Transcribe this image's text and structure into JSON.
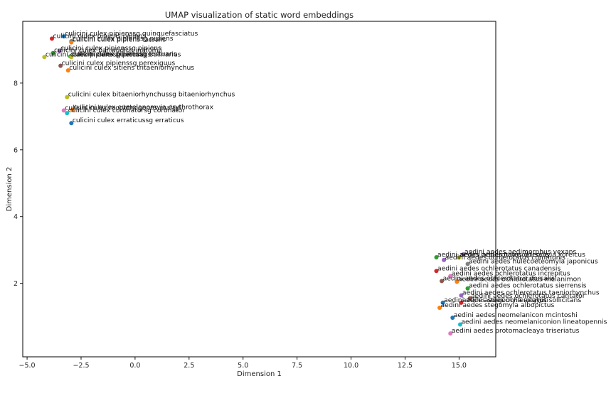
{
  "chart_data": {
    "type": "scatter",
    "title": "UMAP visualization of static word embeddings",
    "xlabel": "Dimension 1",
    "ylabel": "Dimension 2",
    "xlim": [
      -5.2,
      16.7
    ],
    "ylim": [
      -0.2,
      9.85
    ],
    "xticks": [
      -5.0,
      -2.5,
      0.0,
      2.5,
      5.0,
      7.5,
      10.0,
      12.5,
      15.0
    ],
    "xtick_labels": [
      "−5.0",
      "−2.5",
      "0.0",
      "2.5",
      "5.0",
      "7.5",
      "10.0",
      "12.5",
      "15.0"
    ],
    "yticks": [
      2,
      4,
      6,
      8
    ],
    "ytick_labels": [
      "2",
      "4",
      "6",
      "8"
    ],
    "grid": false,
    "legend": "none",
    "points": [
      {
        "label": "culicini culex pipienssg quinquefasciatus",
        "x": -3.3,
        "y": 9.4,
        "color": "#1f77b4"
      },
      {
        "label": "culicini culex pipiens pallens",
        "x": -3.85,
        "y": 9.33,
        "color": "#d62728"
      },
      {
        "label": "culicini culex pipienssg pipiens",
        "x": -2.95,
        "y": 9.25,
        "color": "#1f77b4"
      },
      {
        "label": "culicini culex pipiens tarsalis",
        "x": -2.95,
        "y": 9.22,
        "color": "#ff7f0e"
      },
      {
        "label": "culicini culex pipienssg pipiens",
        "x": -3.5,
        "y": 8.97,
        "color": "#9467bd"
      },
      {
        "label": "culicini culex barraudius inatomii",
        "x": -3.8,
        "y": 8.9,
        "color": "#2ca02c"
      },
      {
        "label": "culicini culex pipienssg restuans",
        "x": -3.0,
        "y": 8.8,
        "color": "#2ca02c"
      },
      {
        "label": "culicini culex pipienssg salinarius",
        "x": -2.95,
        "y": 8.78,
        "color": "#bcbd22"
      },
      {
        "label": "culicini culex pipienssg restuans",
        "x": -4.2,
        "y": 8.78,
        "color": "#bcbd22"
      },
      {
        "label": "culicini culex pipienssg perexiguus",
        "x": -3.45,
        "y": 8.52,
        "color": "#8c564b"
      },
      {
        "label": "culicini culex sitiens tritaeniorhynchus",
        "x": -3.1,
        "y": 8.38,
        "color": "#ff7f0e"
      },
      {
        "label": "culicini culex bitaeniorhynchussg bitaeniorhynchus",
        "x": -3.15,
        "y": 7.58,
        "color": "#bcbd22"
      },
      {
        "label": "culicini culex mochthogenes malayi",
        "x": -3.3,
        "y": 7.18,
        "color": "#e377c2"
      },
      {
        "label": "culicini culex eumelanomyia erythrothorax",
        "x": -2.9,
        "y": 7.2,
        "color": "#ff7f0e"
      },
      {
        "label": "culicini culex coronatorsg coronator",
        "x": -3.15,
        "y": 7.1,
        "color": "#17becf"
      },
      {
        "label": "culicini culex erraticussg erraticus",
        "x": -2.95,
        "y": 6.8,
        "color": "#1f77b4"
      },
      {
        "label": "aedini aedes aedimorphus vexans",
        "x": 15.2,
        "y": 2.87,
        "color": "#9467bd"
      },
      {
        "label": "aedini aedes ochlerotatus dorsalis",
        "x": 13.95,
        "y": 2.78,
        "color": "#2ca02c"
      },
      {
        "label": "aedini aedes hulecoeteomyia koreicus",
        "x": 15.0,
        "y": 2.78,
        "color": "#bcbd22"
      },
      {
        "label": "aedini aedes ochlerotatus communis",
        "x": 14.3,
        "y": 2.7,
        "color": "#9467bd"
      },
      {
        "label": "aedini aedes hulecoeteomyia japonicus",
        "x": 15.4,
        "y": 2.58,
        "color": "#7f7f7f"
      },
      {
        "label": "aedini aedes ochlerotatus canadensis",
        "x": 13.95,
        "y": 2.37,
        "color": "#d62728"
      },
      {
        "label": "aedini aedes ochlerotatus increpitus",
        "x": 14.6,
        "y": 2.22,
        "color": "#e377c2"
      },
      {
        "label": "aedini aedes ochlerotatus dorsalis",
        "x": 14.2,
        "y": 2.07,
        "color": "#8c564b"
      },
      {
        "label": "aedini aedes ochlerotatus melanimon",
        "x": 14.9,
        "y": 2.05,
        "color": "#ff7f0e"
      },
      {
        "label": "aedini aedes ochlerotatus sierrensis",
        "x": 15.4,
        "y": 1.85,
        "color": "#2ca02c"
      },
      {
        "label": "aedini aedes ochlerotatus taeniorhynchus",
        "x": 15.1,
        "y": 1.64,
        "color": "#9467bd"
      },
      {
        "label": "aedini aedes ochlerotatus cantator",
        "x": 15.5,
        "y": 1.55,
        "color": "#8c564b"
      },
      {
        "label": "aedini aedes ochlerotatus sollicitans",
        "x": 15.1,
        "y": 1.42,
        "color": "#d62728"
      },
      {
        "label": "aedini aedes stegomyia aegypti",
        "x": 14.25,
        "y": 1.42,
        "color": "#1f77b4"
      },
      {
        "label": "aedini aedes stegomyia albopictus",
        "x": 14.1,
        "y": 1.27,
        "color": "#ff7f0e"
      },
      {
        "label": "aedini aedes neomelanicon mcintoshi",
        "x": 14.7,
        "y": 0.97,
        "color": "#1f77b4"
      },
      {
        "label": "aedini aedes neomelaniconion lineatopennis",
        "x": 15.05,
        "y": 0.77,
        "color": "#17becf"
      },
      {
        "label": "aedini aedes protomacleaya triseriatus",
        "x": 14.6,
        "y": 0.5,
        "color": "#e377c2"
      }
    ]
  }
}
